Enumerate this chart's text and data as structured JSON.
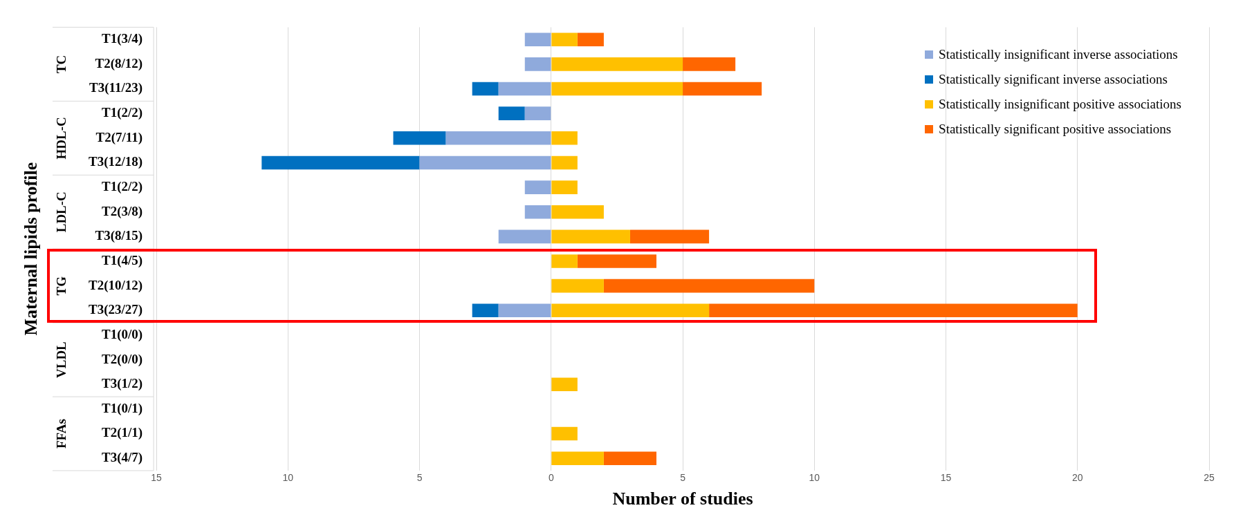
{
  "chart_data": {
    "type": "bar",
    "orientation": "horizontal",
    "stacked": true,
    "xlabel": "Number of studies",
    "ylabel": "Maternal lipids profile",
    "categories": [
      "T1(3/4)",
      "T2(8/12)",
      "T3(11/23)",
      "T1(2/2)",
      "T2(7/11)",
      "T3(12/18)",
      "T1(2/2)",
      "T2(3/8)",
      "T3(8/15)",
      "T1(4/5)",
      "T2(10/12)",
      "T3(23/27)",
      "T1(0/0)",
      "T2(0/0)",
      "T3(1/2)",
      "T1(0/1)",
      "T2(1/1)",
      "T3(4/7)"
    ],
    "annotations": [
      "TC",
      "HDL-C",
      "LDL-C",
      "TG",
      "VLDL",
      "FFAs"
    ],
    "series": [
      {
        "name": "Statistically insignificant inverse associations",
        "color": "#8faadc",
        "values": [
          -1,
          -1,
          -2,
          -1,
          -4,
          -5,
          -1,
          -1,
          -2,
          0,
          0,
          -2,
          0,
          0,
          0,
          0,
          0,
          0
        ]
      },
      {
        "name": "Statistically significant inverse associations",
        "color": "#0070c0",
        "values": [
          0,
          0,
          -1,
          -1,
          -2,
          -6,
          0,
          0,
          0,
          0,
          0,
          -1,
          0,
          0,
          0,
          0,
          0,
          0
        ]
      },
      {
        "name": "Statistically insignificant positive associations",
        "color": "#ffc000",
        "values": [
          1,
          5,
          5,
          0,
          1,
          1,
          1,
          2,
          3,
          1,
          2,
          6,
          0,
          0,
          1,
          0,
          1,
          2
        ]
      },
      {
        "name": "Statistically significant positive associations",
        "color": "#ff6600",
        "values": [
          1,
          2,
          3,
          0,
          0,
          0,
          0,
          0,
          3,
          3,
          8,
          14,
          0,
          0,
          0,
          0,
          0,
          2
        ]
      }
    ],
    "xlim": [
      -15,
      25
    ],
    "xticks": [
      {
        "value": -15,
        "label": "15"
      },
      {
        "value": -10,
        "label": "10"
      },
      {
        "value": -5,
        "label": "5"
      },
      0,
      5,
      10,
      15,
      20,
      25
    ],
    "grid": "x",
    "legend": "top right"
  }
}
